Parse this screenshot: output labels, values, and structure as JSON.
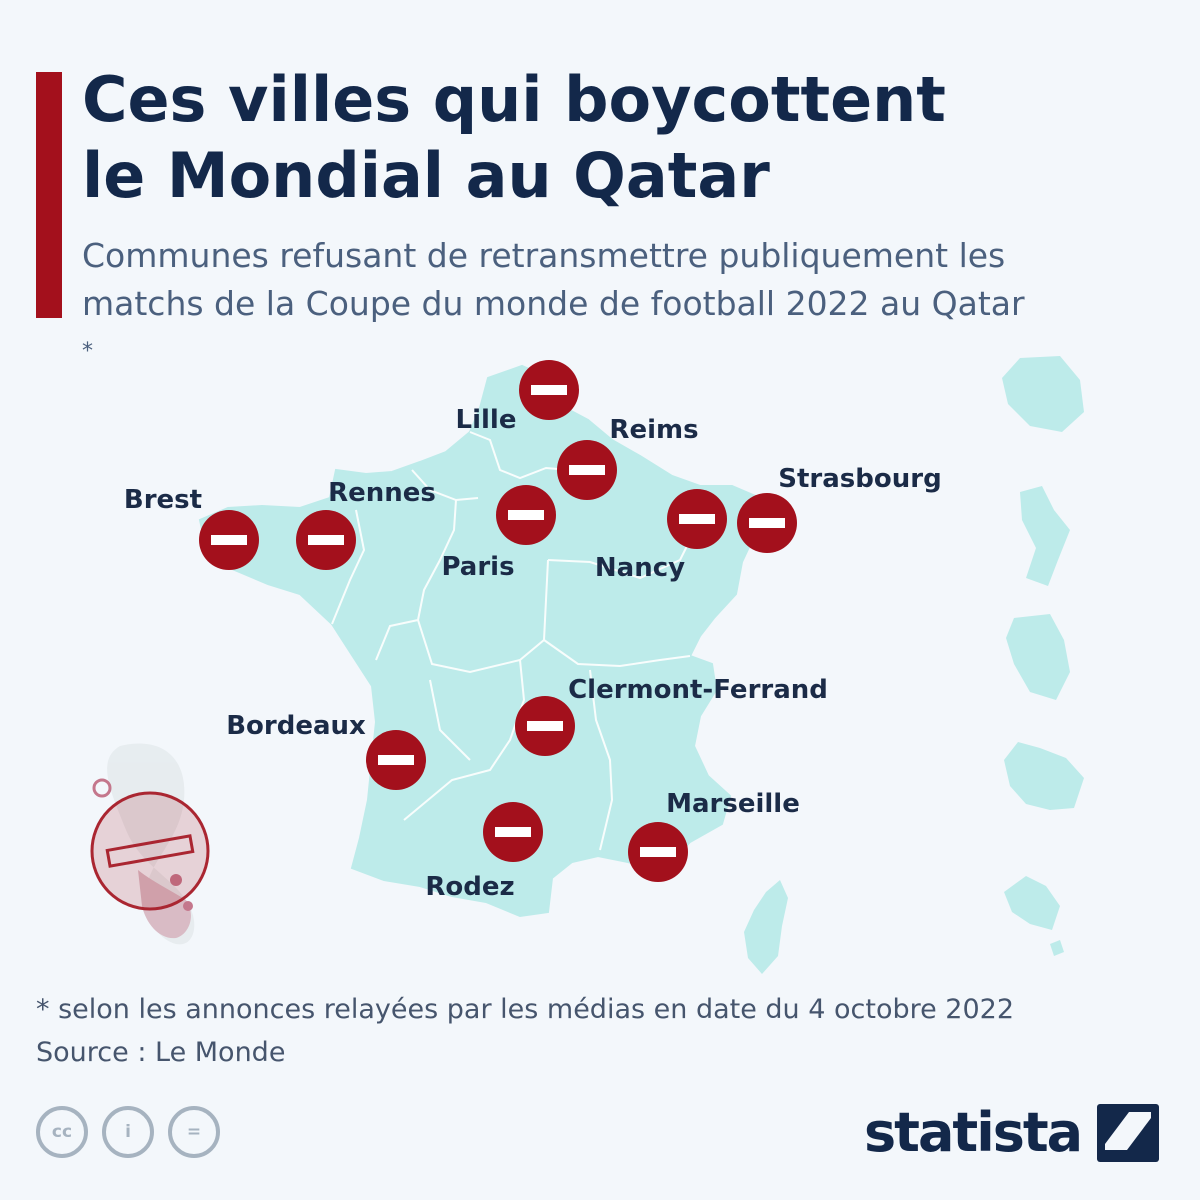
{
  "header": {
    "title_line1": "Ces villes qui boycottent",
    "title_line2": "le Mondial au Qatar",
    "subtitle_line1": "Communes refusant de retransmettre publiquement les",
    "subtitle_line2": "matchs de la Coupe du monde de football 2022 au Qatar",
    "subtitle_asterisk": "*"
  },
  "map": {
    "marker_color": "#a3101c",
    "land_color": "#bdebea",
    "cities": [
      {
        "label": "Lille",
        "status": "boycott"
      },
      {
        "label": "Reims",
        "status": "boycott"
      },
      {
        "label": "Strasbourg",
        "status": "boycott"
      },
      {
        "label": "Brest",
        "status": "boycott"
      },
      {
        "label": "Rennes",
        "status": "boycott"
      },
      {
        "label": "Paris",
        "status": "boycott"
      },
      {
        "label": "Nancy",
        "status": "boycott"
      },
      {
        "label": "Clermont-Ferrand",
        "status": "boycott"
      },
      {
        "label": "Bordeaux",
        "status": "boycott"
      },
      {
        "label": "Marseille",
        "status": "boycott"
      },
      {
        "label": "Rodez",
        "status": "boycott"
      }
    ]
  },
  "footer": {
    "footnote": "* selon les annonces relayées par les médias en date du 4 octobre 2022",
    "source": "Source : Le Monde",
    "license_icons": [
      "cc-icon",
      "attribution-icon",
      "no-derivatives-icon"
    ],
    "license_labels": [
      "cc",
      "i",
      "="
    ],
    "brand": "statista"
  },
  "colors": {
    "accent": "#a3101c",
    "title": "#13284a",
    "subtitle": "#4b607e",
    "background": "#f3f7fb"
  }
}
